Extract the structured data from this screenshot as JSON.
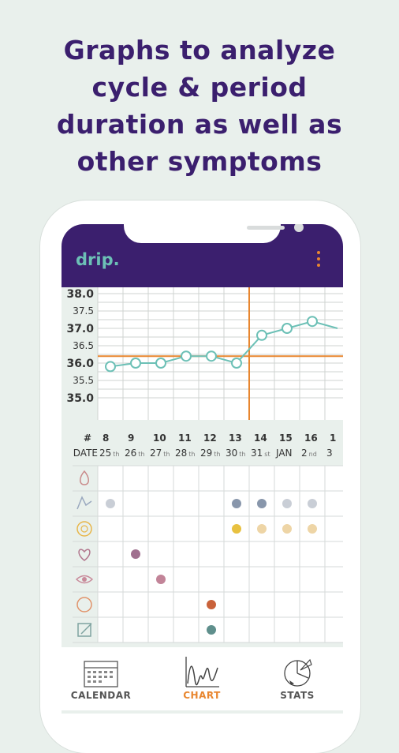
{
  "headline": {
    "line1": "Graphs to analyze",
    "line2": "cycle & period",
    "line3": "duration as well as",
    "line4": "other symptoms"
  },
  "app": {
    "logo": "drip."
  },
  "colors": {
    "brand_purple": "#3b1f6e",
    "accent_orange": "#e8862f",
    "temp_line": "#6cc0b6",
    "background": "#e9f0ec"
  },
  "chart_data": {
    "type": "line",
    "y_ticks_major": [
      "38.0",
      "37.0",
      "36.0",
      "35.0"
    ],
    "y_ticks_minor": [
      "37.5",
      "36.5",
      "35.5"
    ],
    "ylim": [
      34.6,
      38.2
    ],
    "days": [
      "8",
      "9",
      "10",
      "11",
      "12",
      "13",
      "14",
      "15",
      "16",
      "1"
    ],
    "dates": [
      {
        "main": "25",
        "suffix": "th"
      },
      {
        "main": "26",
        "suffix": "th"
      },
      {
        "main": "27",
        "suffix": "th"
      },
      {
        "main": "28",
        "suffix": "th"
      },
      {
        "main": "29",
        "suffix": "th"
      },
      {
        "main": "30",
        "suffix": "th"
      },
      {
        "main": "31",
        "suffix": "st"
      },
      {
        "main": "JAN",
        "suffix": ""
      },
      {
        "main": "2",
        "suffix": "nd"
      },
      {
        "main": "3",
        "suffix": ""
      }
    ],
    "day_label": "#",
    "date_label": "DATE",
    "series": [
      {
        "values": [
          35.9,
          36.0,
          36.0,
          36.2,
          36.2,
          36.0,
          36.8,
          37.0,
          37.2,
          37.0
        ]
      }
    ],
    "cover_line": 36.2,
    "ovulation_day_index": 5.5
  },
  "symptoms": [
    {
      "icon": "bleeding-drop-icon",
      "color": "#c98a8a",
      "dots": []
    },
    {
      "icon": "cervical-mucus-icon",
      "color": "#9aa9bf",
      "dots": [
        {
          "col": 0,
          "shade": "#c9ced6"
        },
        {
          "col": 5,
          "shade": "#8896ab"
        },
        {
          "col": 6,
          "shade": "#8896ab"
        },
        {
          "col": 7,
          "shade": "#c9ced6"
        },
        {
          "col": 8,
          "shade": "#c9ced6"
        }
      ]
    },
    {
      "icon": "cervix-icon",
      "color": "#e8b64a",
      "dots": [
        {
          "col": 5,
          "shade": "#e8c140"
        },
        {
          "col": 6,
          "shade": "#eed5a6"
        },
        {
          "col": 7,
          "shade": "#eed5a6"
        },
        {
          "col": 8,
          "shade": "#eed5a6"
        }
      ]
    },
    {
      "icon": "heart-icon",
      "color": "#b2788f",
      "dots": [
        {
          "col": 1,
          "shade": "#a0708f"
        }
      ]
    },
    {
      "icon": "eye-icon",
      "color": "#c88a9a",
      "dots": [
        {
          "col": 2,
          "shade": "#c28498"
        }
      ]
    },
    {
      "icon": "pain-circle-icon",
      "color": "#e1936b",
      "dots": [
        {
          "col": 4,
          "shade": "#c9623a"
        }
      ]
    },
    {
      "icon": "note-icon",
      "color": "#7fa3a0",
      "dots": [
        {
          "col": 4,
          "shade": "#5f8f8c"
        }
      ]
    }
  ],
  "nav": [
    {
      "label": "CALENDAR",
      "icon": "calendar-icon",
      "active": false
    },
    {
      "label": "CHART",
      "icon": "chart-icon",
      "active": true
    },
    {
      "label": "STATS",
      "icon": "stats-icon",
      "active": false
    }
  ]
}
